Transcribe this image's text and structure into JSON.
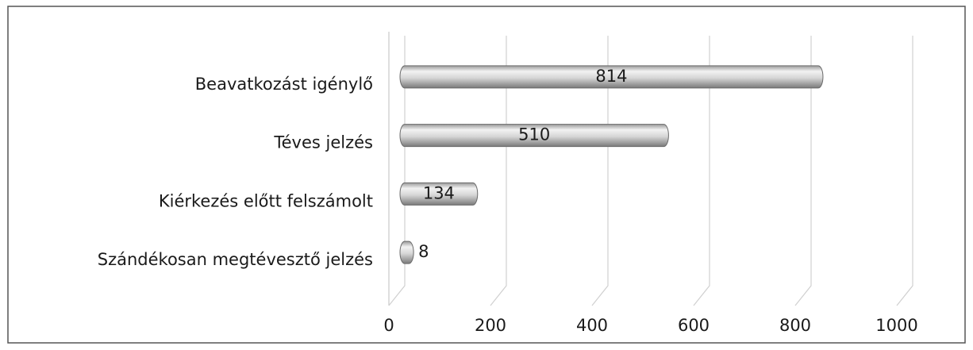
{
  "chart_data": {
    "type": "bar",
    "categories": [
      "Beavatkozást igénylő",
      "Téves jelzés",
      "Kiérkezés előtt felszámolt",
      "Szándékosan megtévesztő jelzés"
    ],
    "values": [
      814,
      510,
      134,
      8
    ],
    "color": "#c8c8c8",
    "xlim": [
      0,
      1000
    ],
    "xticks": [
      0,
      200,
      400,
      600,
      800,
      1000
    ],
    "grid": true
  }
}
